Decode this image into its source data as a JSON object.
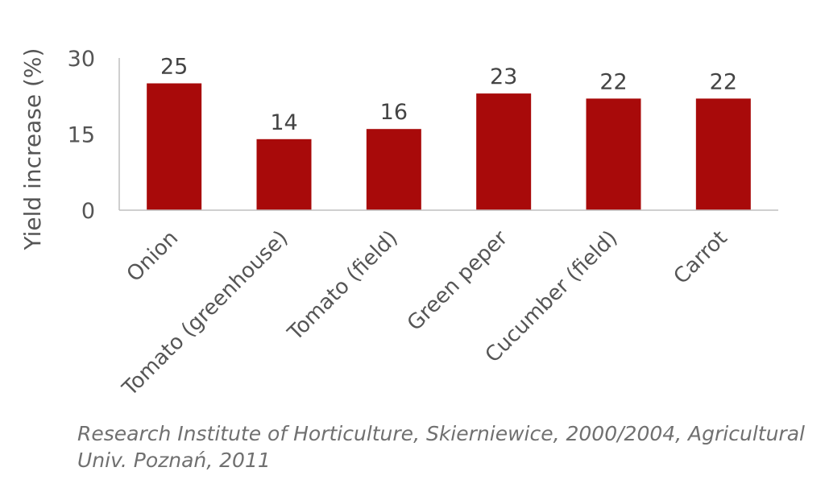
{
  "chart_data": {
    "type": "bar",
    "categories": [
      "Onion",
      "Tomato (greenhouse)",
      "Tomato (field)",
      "Green peper",
      "Cucumber (field)",
      "Carrot"
    ],
    "values": [
      25,
      14,
      16,
      23,
      22,
      22
    ],
    "value_labels": [
      "25",
      "14",
      "16",
      "23",
      "22",
      "22"
    ],
    "title": "",
    "xlabel": "",
    "ylabel": "Yield increase (%)",
    "ylim": [
      0,
      30
    ],
    "yticks": [
      0,
      15,
      30
    ],
    "bar_color": "#a80a0a",
    "grid": false,
    "legend": "none"
  },
  "source_note": "Research Institute of Horticulture, Skierniewice, 2000/2004, Agricultural Univ. Poznań, 2011"
}
